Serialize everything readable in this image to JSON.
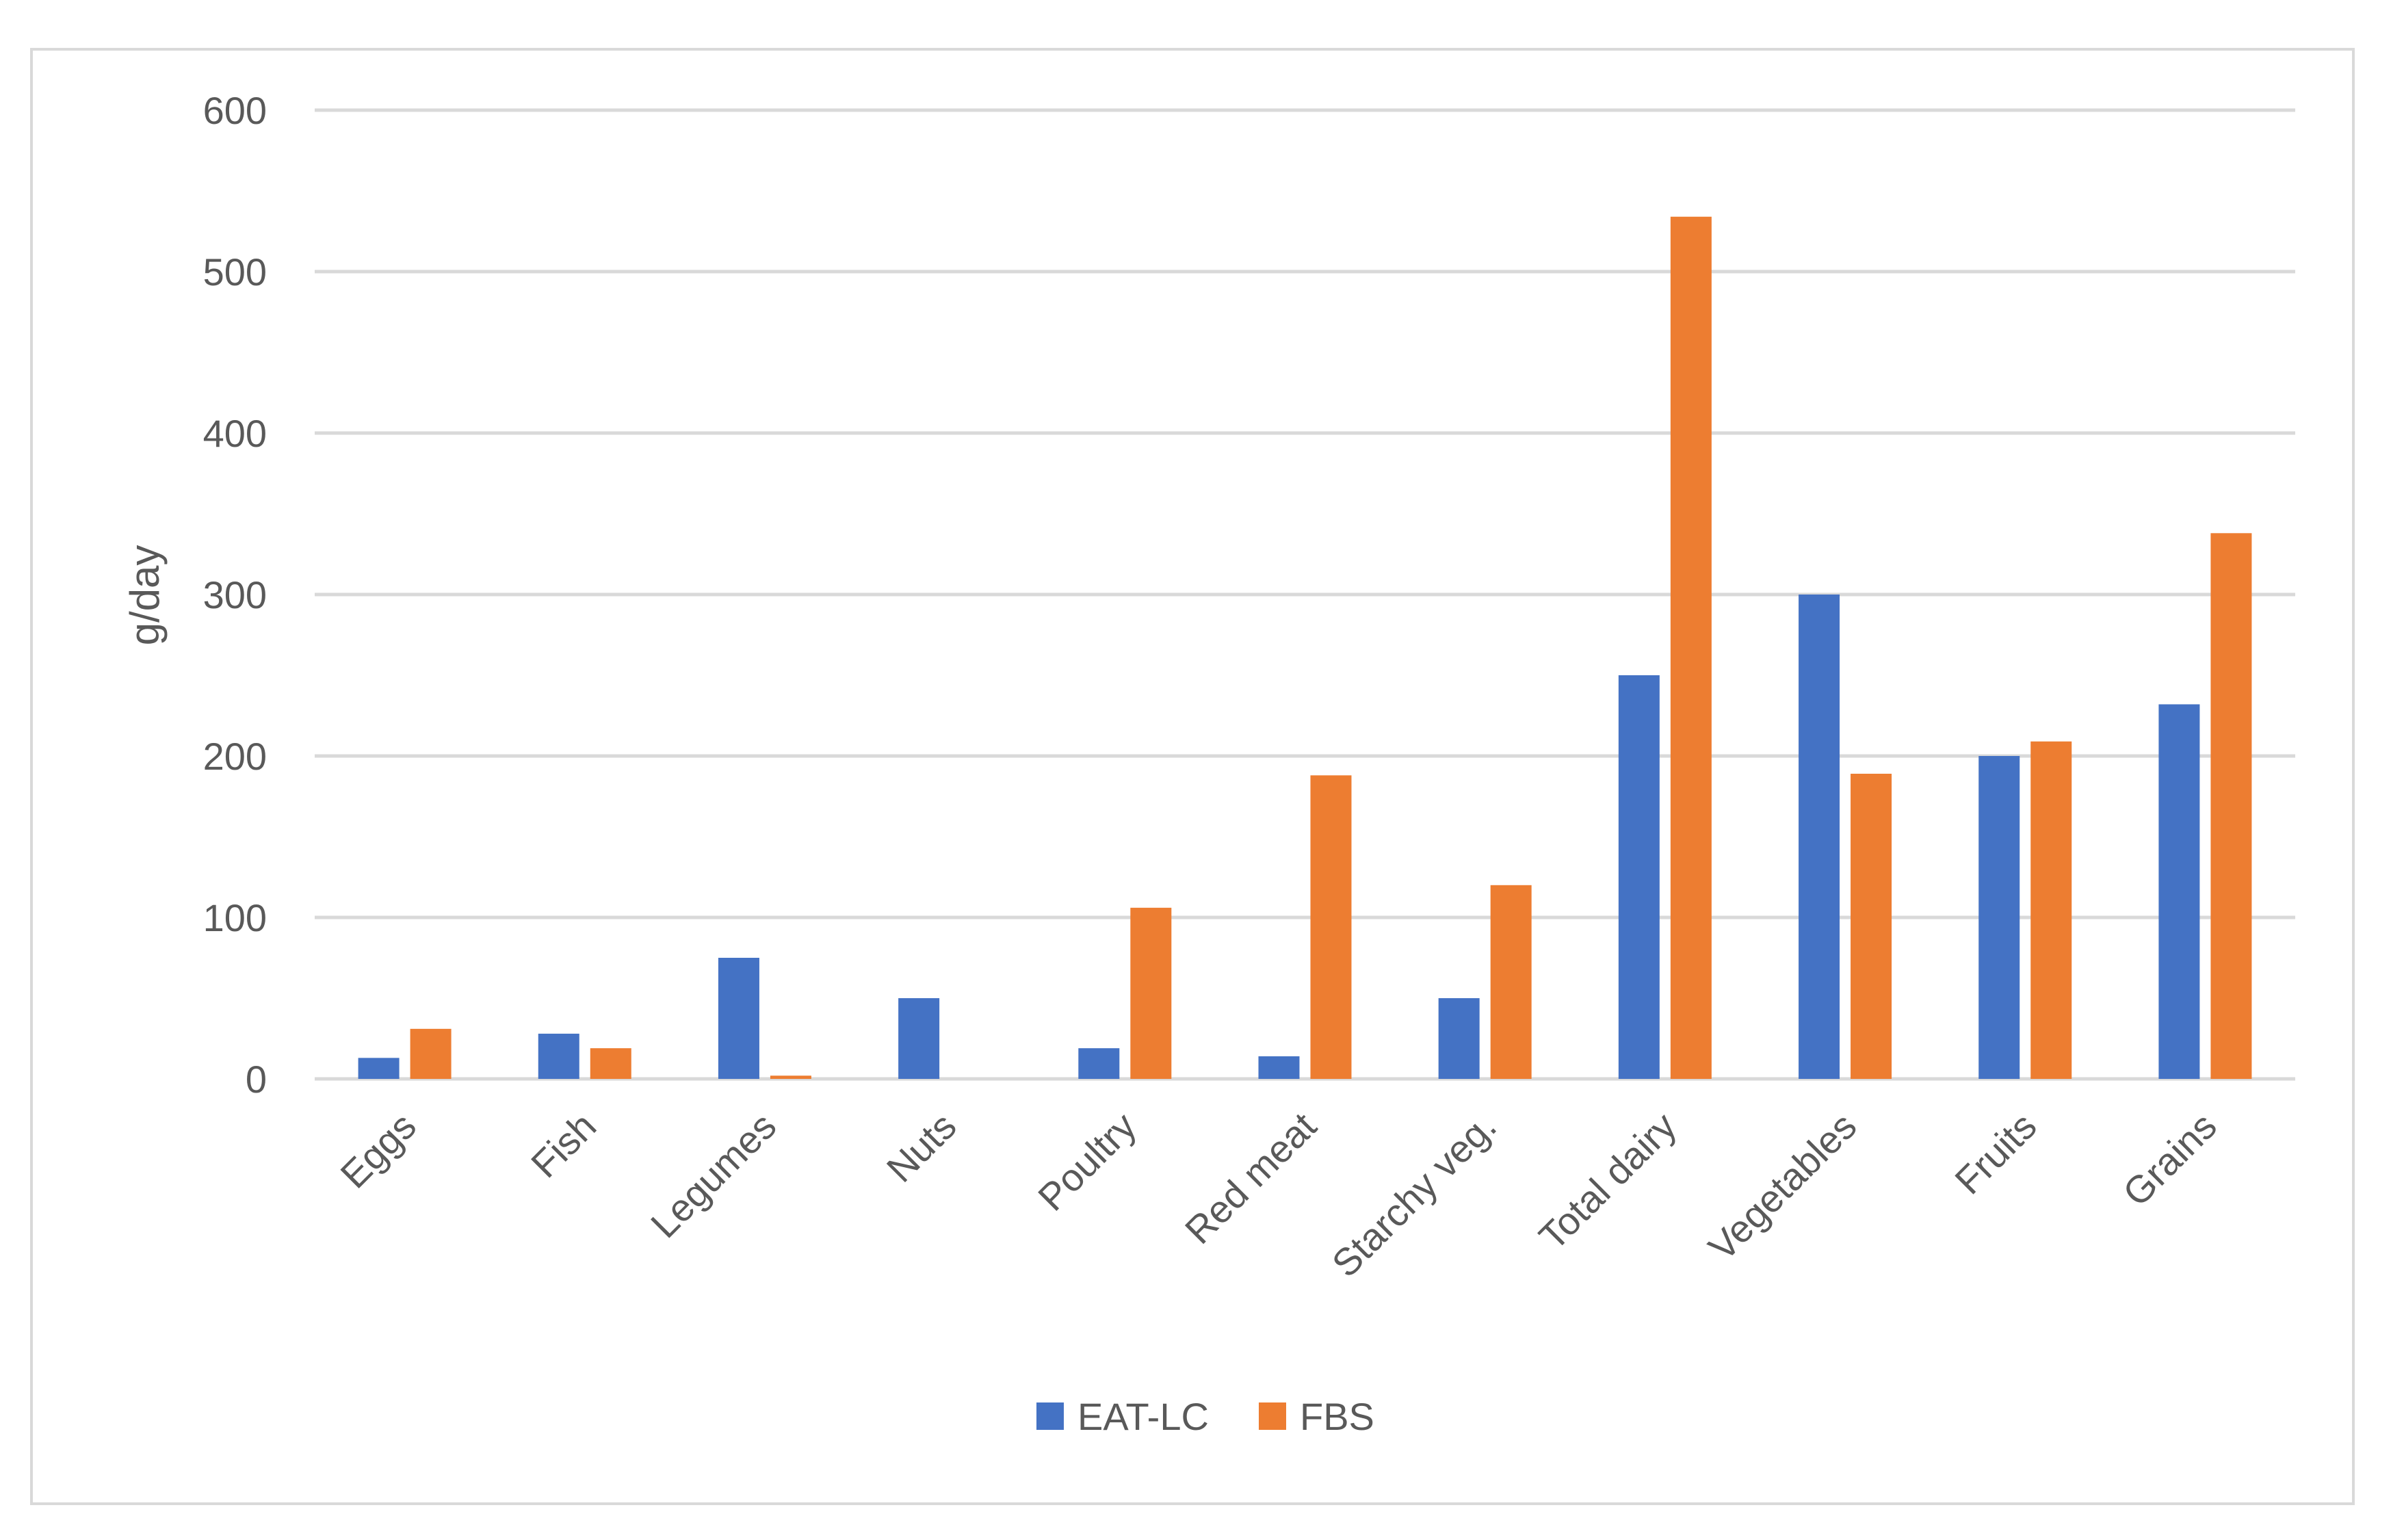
{
  "chart_data": {
    "type": "bar",
    "ylabel": "g/day",
    "xlabel": "",
    "ylim": [
      0,
      600
    ],
    "yticks": [
      0,
      100,
      200,
      300,
      400,
      500,
      600
    ],
    "grid": true,
    "legend_position": "bottom",
    "categories": [
      "Eggs",
      "Fish",
      "Legumes",
      "Nuts",
      "Poultry",
      "Red meat",
      "Starchy veg.",
      "Total dairy",
      "Vegetables",
      "Fruits",
      "Grains"
    ],
    "series": [
      {
        "name": "EAT-LC",
        "color": "#4472c4",
        "values": [
          13,
          28,
          75,
          50,
          19,
          14,
          50,
          250,
          300,
          200,
          232
        ]
      },
      {
        "name": "FBS",
        "color": "#ed7d31",
        "values": [
          31,
          19,
          2,
          0,
          106,
          188,
          120,
          534,
          189,
          209,
          338
        ]
      }
    ]
  }
}
